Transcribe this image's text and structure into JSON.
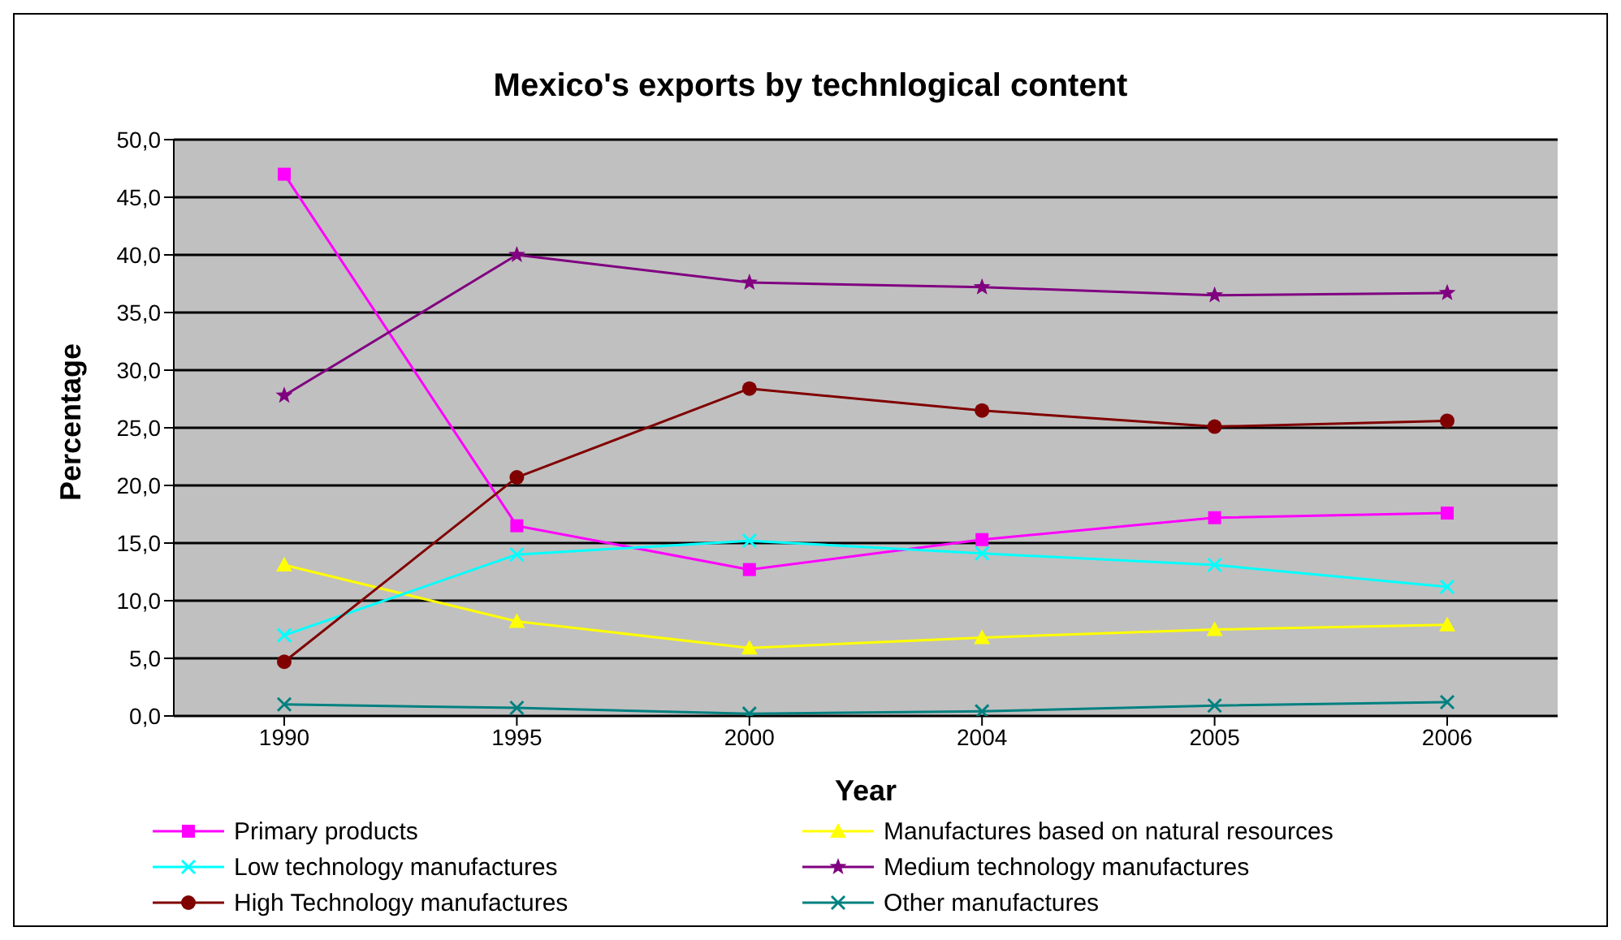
{
  "chart_data": {
    "type": "line",
    "title": "Mexico's exports by technlogical content",
    "xlabel": "Year",
    "ylabel": "Percentage",
    "categories": [
      "1990",
      "1995",
      "2000",
      "2004",
      "2005",
      "2006"
    ],
    "series": [
      {
        "name": "Primary products",
        "color": "#ff00ff",
        "marker": "square",
        "values": [
          47.0,
          16.5,
          12.7,
          15.3,
          17.2,
          17.6
        ]
      },
      {
        "name": "Manufactures based on natural resources",
        "color": "#ffff00",
        "marker": "triangle",
        "values": [
          13.1,
          8.2,
          5.9,
          6.8,
          7.5,
          7.9
        ]
      },
      {
        "name": "Low technology manufactures",
        "color": "#00ffff",
        "marker": "cross",
        "values": [
          7.0,
          14.0,
          15.2,
          14.1,
          13.1,
          11.2
        ]
      },
      {
        "name": "Medium technology manufactures",
        "color": "#800080",
        "marker": "star",
        "values": [
          27.8,
          40.0,
          37.6,
          37.2,
          36.5,
          36.7
        ]
      },
      {
        "name": "High Technology manufactures",
        "color": "#800000",
        "marker": "circle",
        "values": [
          4.7,
          20.7,
          28.4,
          26.5,
          25.1,
          25.6
        ]
      },
      {
        "name": "Other manufactures",
        "color": "#008080",
        "marker": "cross",
        "values": [
          1.0,
          0.7,
          0.2,
          0.4,
          0.9,
          1.2
        ]
      }
    ],
    "ylim": [
      0,
      50
    ],
    "yticks": [
      {
        "value": 0,
        "label": "0,0"
      },
      {
        "value": 5,
        "label": "5,0"
      },
      {
        "value": 10,
        "label": "10,0"
      },
      {
        "value": 15,
        "label": "15,0"
      },
      {
        "value": 20,
        "label": "20,0"
      },
      {
        "value": 25,
        "label": "25,0"
      },
      {
        "value": 30,
        "label": "30,0"
      },
      {
        "value": 35,
        "label": "35,0"
      },
      {
        "value": 40,
        "label": "40,0"
      },
      {
        "value": 45,
        "label": "45,0"
      },
      {
        "value": 50,
        "label": "50,0"
      }
    ],
    "grid": "y",
    "legend": "bottom",
    "line_style": "solid"
  }
}
